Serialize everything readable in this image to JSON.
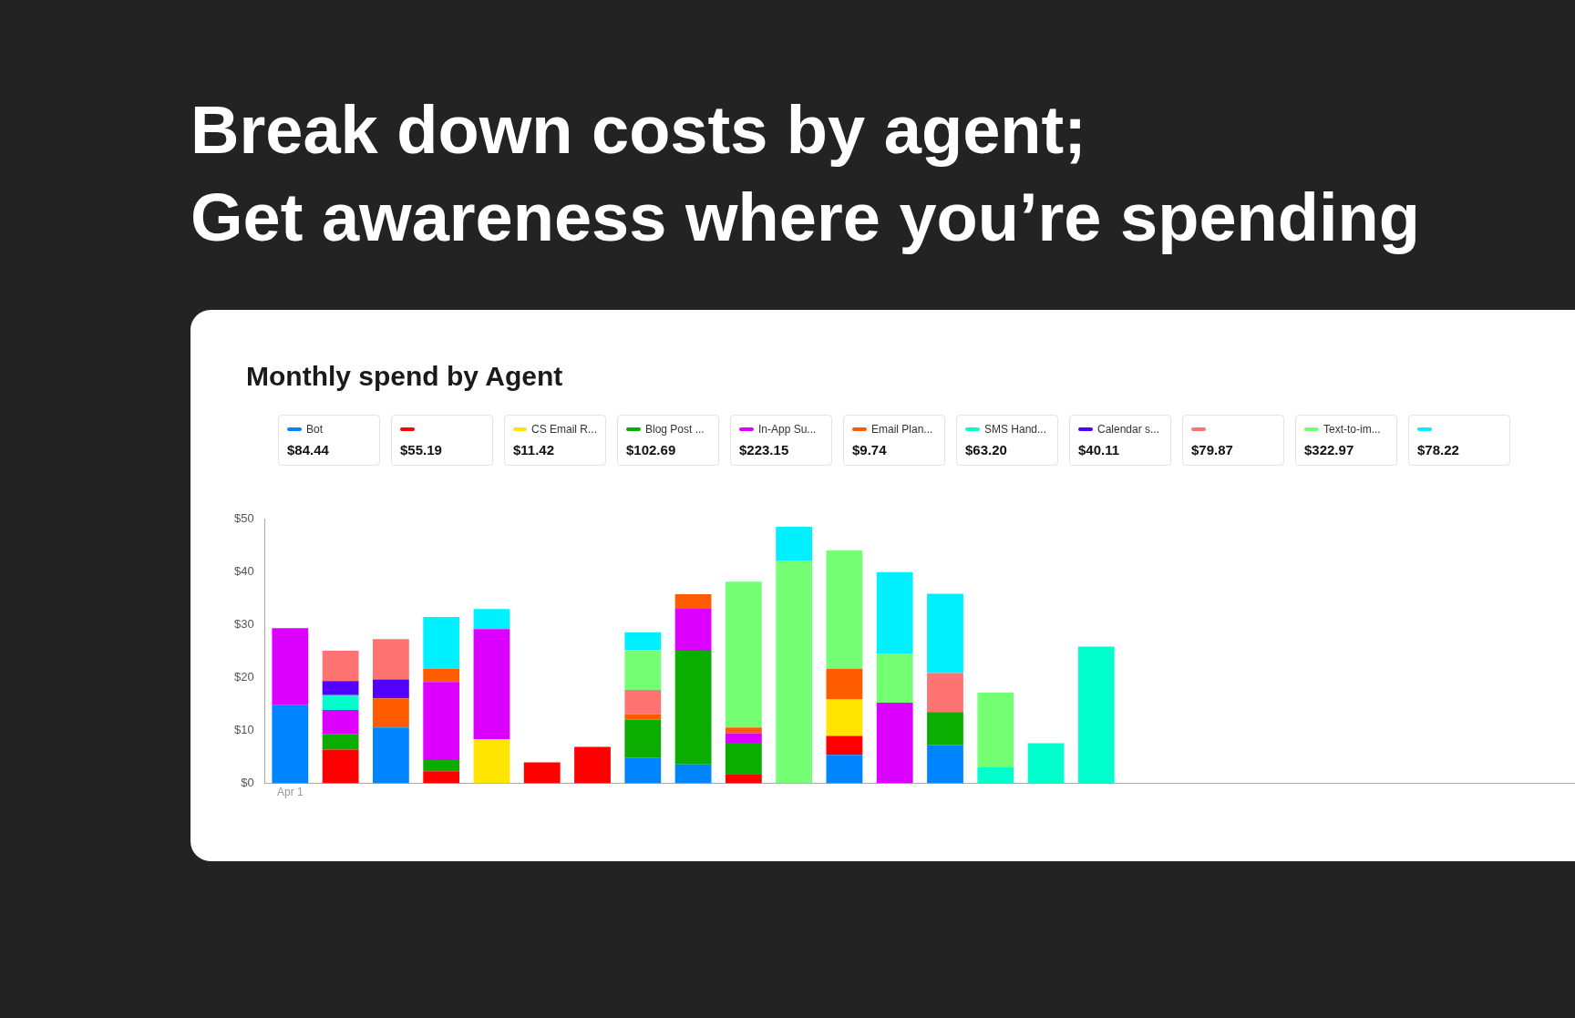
{
  "chart_data": {
    "type": "bar",
    "stacked": true,
    "title": "Break down costs by agent;\nGet awareness where you’re spending",
    "subtitle": "Monthly spend by Agent",
    "categories": [
      "Apr 1",
      null,
      null,
      null,
      null,
      null,
      null,
      null,
      null,
      null,
      null,
      null,
      null,
      null,
      null,
      null,
      null,
      null,
      null,
      null,
      null,
      null,
      null,
      null,
      null,
      null
    ],
    "series": [
      {
        "name": "Bot",
        "color": "#0085ff",
        "values": [
          14.8,
          null,
          10.6,
          null,
          null,
          null,
          null,
          4.8,
          3.6,
          null,
          null,
          5.4,
          null,
          7.3,
          null,
          null,
          null,
          null,
          null,
          null,
          null,
          null,
          null,
          null,
          null,
          null
        ]
      },
      {
        "name": null,
        "color": "#ff0000",
        "values": [
          null,
          6.4,
          null,
          2.3,
          null,
          4.0,
          6.9,
          null,
          null,
          1.8,
          null,
          3.6,
          null,
          null,
          null,
          null,
          null,
          null,
          null,
          null,
          null,
          null,
          null,
          null,
          null,
          null
        ]
      },
      {
        "name": "CS Email R...",
        "color": "#ffe500",
        "values": [
          null,
          null,
          null,
          null,
          8.4,
          null,
          null,
          null,
          null,
          null,
          null,
          6.9,
          null,
          null,
          null,
          null,
          null,
          null,
          null,
          null,
          null,
          null,
          null,
          null,
          null,
          null
        ]
      },
      {
        "name": "Blog Post ...",
        "color": "#0aad00",
        "values": [
          null,
          2.9,
          null,
          2.1,
          null,
          null,
          null,
          7.3,
          21.5,
          5.9,
          null,
          null,
          null,
          6.2,
          null,
          null,
          null,
          null,
          null,
          null,
          null,
          null,
          null,
          null,
          null,
          null
        ]
      },
      {
        "name": "In-App Su...",
        "color": "#db00ff",
        "values": [
          14.6,
          4.6,
          null,
          14.8,
          20.8,
          null,
          null,
          null,
          8.1,
          1.8,
          null,
          null,
          15.3,
          null,
          null,
          null,
          null,
          null,
          null,
          null,
          null,
          null,
          null,
          null,
          null,
          null
        ]
      },
      {
        "name": "Email Plan...",
        "color": "#ff5c00",
        "values": [
          null,
          null,
          5.5,
          2.5,
          null,
          null,
          null,
          1.0,
          2.6,
          1.1,
          null,
          5.8,
          null,
          null,
          null,
          null,
          null,
          null,
          null,
          null,
          null,
          null,
          null,
          null,
          null,
          null
        ]
      },
      {
        "name": "SMS Hand...",
        "color": "#00ffcc",
        "values": [
          null,
          2.8,
          null,
          null,
          null,
          null,
          null,
          null,
          null,
          null,
          null,
          null,
          null,
          null,
          3.1,
          7.6,
          25.9,
          null,
          null,
          null,
          null,
          null,
          null,
          null,
          null,
          null
        ]
      },
      {
        "name": "Calendar s...",
        "color": "#5200ff",
        "values": [
          null,
          2.7,
          3.6,
          null,
          null,
          null,
          null,
          null,
          null,
          null,
          null,
          null,
          null,
          null,
          null,
          null,
          null,
          null,
          null,
          null,
          null,
          null,
          null,
          null,
          null,
          null
        ]
      },
      {
        "name": null,
        "color": "#ff7373",
        "values": [
          null,
          5.7,
          7.6,
          null,
          null,
          null,
          null,
          4.6,
          null,
          null,
          null,
          null,
          null,
          7.4,
          null,
          null,
          null,
          null,
          null,
          null,
          null,
          null,
          null,
          null,
          null,
          null
        ]
      },
      {
        "name": "Text-to-im...",
        "color": "#75ff75",
        "values": [
          null,
          null,
          null,
          null,
          null,
          null,
          null,
          7.5,
          null,
          27.6,
          42.2,
          22.4,
          9.3,
          null,
          14.1,
          null,
          null,
          null,
          null,
          null,
          null,
          null,
          null,
          null,
          null,
          null
        ]
      },
      {
        "name": null,
        "color": "#00f0ff",
        "values": [
          null,
          null,
          null,
          9.8,
          3.8,
          null,
          null,
          3.4,
          null,
          null,
          6.4,
          null,
          15.4,
          15.0,
          null,
          null,
          null,
          null,
          null,
          null,
          null,
          null,
          null,
          null,
          null,
          null
        ]
      }
    ],
    "annotations": [
      "$84.44",
      "$55.19",
      "$11.42",
      "$102.69",
      "$223.15",
      "$9.74",
      "$63.20",
      "$40.11",
      "$79.87",
      "$322.97",
      "$78.22"
    ],
    "ylim": [
      0,
      50
    ],
    "yticks": [
      {
        "value": 0,
        "label": "$0"
      },
      {
        "value": 10,
        "label": "$10"
      },
      {
        "value": 20,
        "label": "$20"
      },
      {
        "value": 30,
        "label": "$30"
      },
      {
        "value": 40,
        "label": "$40"
      },
      {
        "value": 50,
        "label": "$50"
      }
    ],
    "grid": false,
    "legend": "top left"
  }
}
